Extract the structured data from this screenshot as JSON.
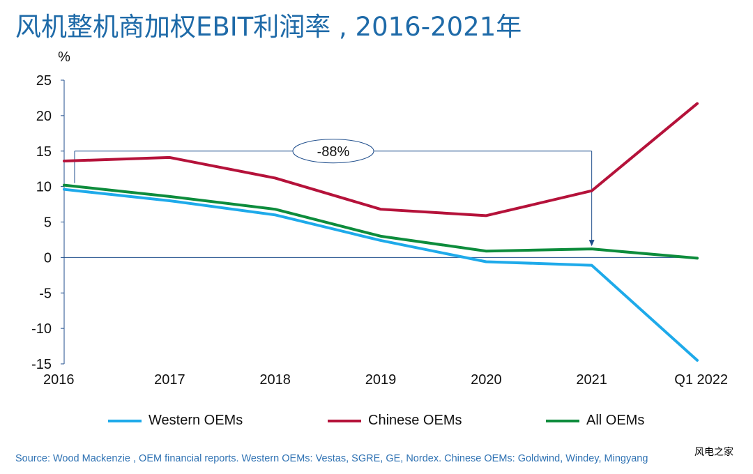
{
  "title": "风机整机商加权EBIT利润率 , 2016-2021年",
  "source": "Source: Wood Mackenzie , OEM financial reports. Western OEMs: Vestas, SGRE, GE, Nordex.  Chinese OEMs: Goldwind, Windey, Mingyang",
  "watermark": "风电之家",
  "chart_data": {
    "type": "line",
    "title": "风机整机商加权EBIT利润率 , 2016-2021年",
    "ylabel": "%",
    "xlabel": "",
    "categories": [
      "2016",
      "2017",
      "2018",
      "2019",
      "2020",
      "2021",
      "Q1 2022"
    ],
    "ylim": [
      -15,
      25
    ],
    "yticks": [
      25,
      20,
      15,
      10,
      5,
      0,
      -5,
      -10,
      -15
    ],
    "grid": false,
    "legend_position": "bottom",
    "series": [
      {
        "name": "Western OEMs",
        "color": "#1eaaea",
        "values": [
          9.6,
          8.0,
          6.0,
          2.4,
          -0.6,
          -1.1,
          -14.5
        ]
      },
      {
        "name": "Chinese OEMs",
        "color": "#b5123a",
        "values": [
          13.6,
          14.1,
          11.2,
          6.8,
          5.9,
          9.4,
          21.7
        ]
      },
      {
        "name": "All OEMs",
        "color": "#0d8c3c",
        "values": [
          10.2,
          8.6,
          6.8,
          3.0,
          0.9,
          1.2,
          -0.1
        ]
      }
    ],
    "annotation": {
      "text": "-88%",
      "from": "2016",
      "to": "2021",
      "color": "#1f4e8c"
    }
  }
}
